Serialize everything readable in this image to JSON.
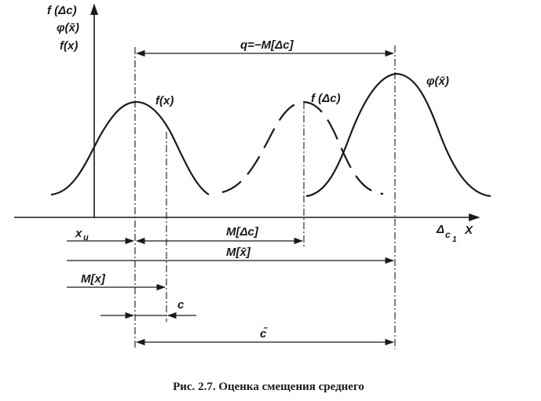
{
  "axes": {
    "y_labels": [
      "f (Δc)",
      "φ(x̄)",
      "f(x)"
    ],
    "x_label_delta": "Δ",
    "x_label_sub": "c",
    "x_label_subsub": "1",
    "x_label_x": "X"
  },
  "curves": {
    "fx_label": "f(x)",
    "fdc_label": "f (Δc)",
    "phi_label": "φ(x̄)"
  },
  "dimensions": {
    "q_label": "q=−M[Δc]",
    "xu_label": "x",
    "xu_sub": "u",
    "mdc_label": "M[Δc]",
    "mxbar_label": "M[x̄]",
    "mx_label": "M[x]",
    "c_label": "c",
    "cbar_label": "c̄"
  },
  "caption": "Рис. 2.7. Оценка смещения среднего"
}
